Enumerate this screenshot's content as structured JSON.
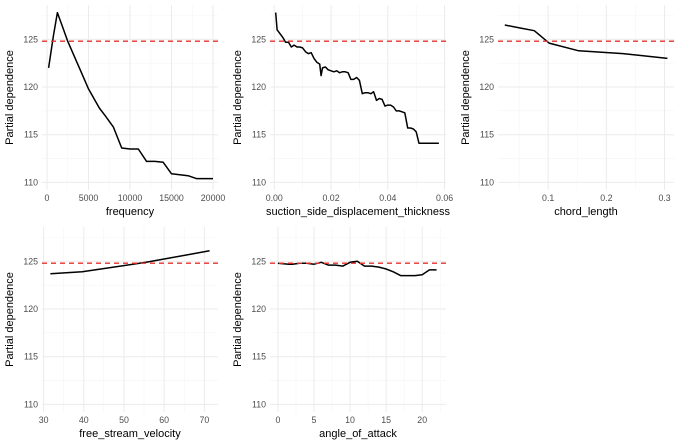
{
  "chart_data": [
    {
      "type": "line",
      "xlabel": "frequency",
      "ylabel": "Partial dependence",
      "xlim": [
        -600,
        20600
      ],
      "ylim": [
        109.2,
        128.6
      ],
      "xticks": [
        0,
        5000,
        10000,
        15000,
        20000
      ],
      "xtick_labels": [
        "0",
        "5000",
        "10000",
        "15000",
        "20000"
      ],
      "yticks": [
        110,
        115,
        120,
        125
      ],
      "grid": true,
      "reference_line": 124.8,
      "x": [
        200,
        800,
        1250,
        2000,
        2500,
        3150,
        4000,
        5000,
        6300,
        7000,
        8000,
        9000,
        10000,
        11000,
        12000,
        13000,
        14000,
        15000,
        16000,
        17000,
        18000,
        19000,
        20000
      ],
      "y": [
        122.0,
        125.5,
        127.8,
        126.0,
        124.8,
        123.5,
        121.8,
        119.8,
        117.8,
        117.0,
        115.8,
        113.6,
        113.5,
        113.5,
        112.2,
        112.2,
        112.1,
        110.9,
        110.8,
        110.7,
        110.4,
        110.4,
        110.4
      ]
    },
    {
      "type": "line",
      "xlabel": "suction_side_displacement_thickness",
      "ylabel": "Partial dependence",
      "xlim": [
        -0.0015,
        0.0605
      ],
      "ylim": [
        109.2,
        128.6
      ],
      "xticks": [
        0.0,
        0.02,
        0.04,
        0.06
      ],
      "xtick_labels": [
        "0.00",
        "0.02",
        "0.04",
        "0.06"
      ],
      "yticks": [
        110,
        115,
        120,
        125
      ],
      "grid": true,
      "reference_line": 124.8,
      "x": [
        0.0005,
        0.001,
        0.002,
        0.003,
        0.004,
        0.005,
        0.006,
        0.007,
        0.008,
        0.009,
        0.01,
        0.011,
        0.012,
        0.013,
        0.014,
        0.015,
        0.016,
        0.0165,
        0.017,
        0.018,
        0.019,
        0.02,
        0.021,
        0.022,
        0.023,
        0.024,
        0.025,
        0.026,
        0.027,
        0.028,
        0.029,
        0.03,
        0.031,
        0.032,
        0.033,
        0.034,
        0.035,
        0.036,
        0.037,
        0.038,
        0.039,
        0.04,
        0.041,
        0.042,
        0.043,
        0.044,
        0.045,
        0.046,
        0.047,
        0.048,
        0.049,
        0.05,
        0.051,
        0.052,
        0.053,
        0.054,
        0.055,
        0.056,
        0.057,
        0.058
      ],
      "y": [
        127.8,
        126.0,
        125.6,
        125.2,
        124.7,
        124.7,
        124.2,
        124.4,
        124.2,
        124.2,
        124.1,
        123.7,
        123.5,
        123.6,
        123.0,
        122.6,
        122.4,
        121.2,
        122.0,
        122.1,
        121.8,
        121.7,
        121.6,
        121.7,
        121.5,
        121.6,
        121.6,
        121.5,
        120.8,
        120.8,
        121.0,
        120.7,
        119.3,
        119.4,
        119.4,
        119.3,
        119.5,
        118.6,
        118.8,
        118.7,
        118.0,
        118.1,
        118.1,
        117.9,
        117.5,
        117.5,
        117.4,
        117.3,
        115.7,
        115.7,
        115.6,
        115.3,
        114.1,
        114.1,
        114.1,
        114.1,
        114.1,
        114.1,
        114.1,
        114.1
      ]
    },
    {
      "type": "line",
      "xlabel": "chord_length",
      "ylabel": "Partial dependence",
      "xlim": [
        0.0138,
        0.3162
      ],
      "ylim": [
        109.2,
        128.6
      ],
      "xticks": [
        0.1,
        0.2,
        0.3
      ],
      "xtick_labels": [
        "0.1",
        "0.2",
        "0.3"
      ],
      "yticks": [
        110,
        115,
        120,
        125
      ],
      "grid": true,
      "reference_line": 124.8,
      "x": [
        0.0254,
        0.0508,
        0.0762,
        0.1016,
        0.1524,
        0.2286,
        0.3048
      ],
      "y": [
        126.5,
        126.2,
        125.9,
        124.6,
        123.8,
        123.5,
        123.0
      ]
    },
    {
      "type": "line",
      "xlabel": "free_stream_velocity",
      "ylabel": "Partial dependence",
      "xlim": [
        29.6,
        73.4
      ],
      "ylim": [
        109.2,
        128.6
      ],
      "xticks": [
        30,
        40,
        50,
        60,
        70
      ],
      "xtick_labels": [
        "30",
        "40",
        "50",
        "60",
        "70"
      ],
      "yticks": [
        110,
        115,
        120,
        125
      ],
      "grid": true,
      "reference_line": 124.8,
      "x": [
        31.7,
        39.6,
        55.5,
        71.3
      ],
      "y": [
        123.7,
        123.9,
        124.9,
        126.1
      ]
    },
    {
      "type": "line",
      "xlabel": "angle_of_attack",
      "ylabel": "Partial dependence",
      "xlim": [
        -1.1,
        23.3
      ],
      "ylim": [
        109.2,
        128.6
      ],
      "xticks": [
        0,
        5,
        10,
        15,
        20
      ],
      "xtick_labels": [
        "0",
        "5",
        "10",
        "15",
        "20"
      ],
      "yticks": [
        110,
        115,
        120,
        125
      ],
      "grid": true,
      "reference_line": 124.8,
      "x": [
        0,
        1.5,
        2,
        3,
        4,
        5,
        6,
        7,
        8,
        9,
        10,
        11,
        12,
        13,
        14,
        15,
        16,
        17,
        18,
        19,
        20,
        21,
        22
      ],
      "y": [
        124.8,
        124.7,
        124.7,
        124.8,
        124.8,
        124.7,
        124.9,
        124.6,
        124.6,
        124.5,
        124.9,
        125.0,
        124.5,
        124.5,
        124.4,
        124.2,
        123.9,
        123.5,
        123.5,
        123.5,
        123.6,
        124.1,
        124.1
      ]
    }
  ]
}
